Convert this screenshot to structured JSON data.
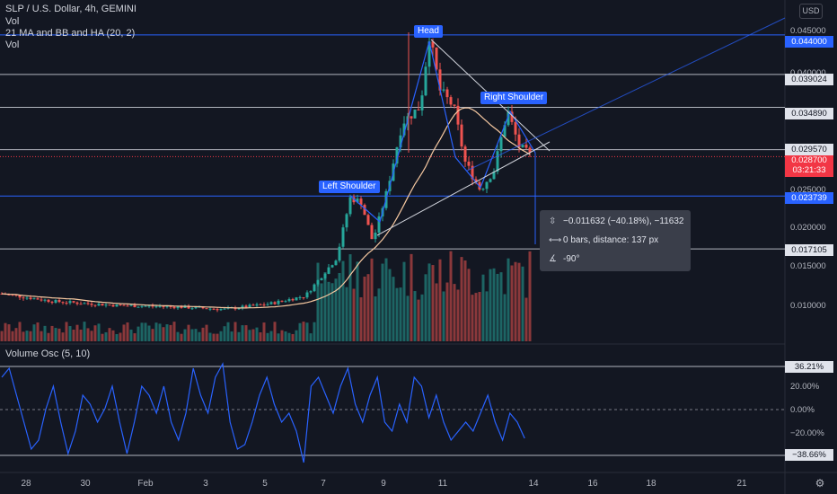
{
  "legend": {
    "symbol": "SLP / U.S. Dollar, 4h, GEMINI",
    "line2": "Vol",
    "line3": "21 MA and BB and HA (20, 2)",
    "line4": "Vol",
    "osc_title": "Volume Osc (5, 10)"
  },
  "currency_button": "USD",
  "price_tags": {
    "tag_044000": "0.044000",
    "tag_039024": "0.039024",
    "tag_034890": "0.034890",
    "tag_029570": "0.029570",
    "tag_current": "0.028700",
    "countdown": "03:21:33",
    "tag_023739": "0.023739",
    "tag_017105": "0.017105"
  },
  "price_axis_labels": [
    "0.045000",
    "0.040000",
    "0.025000",
    "0.020000",
    "0.015000",
    "0.010000"
  ],
  "osc_tags": {
    "top": "36.21%",
    "bottom": "−38.66%"
  },
  "osc_axis_labels": [
    "20.00%",
    "0.00%",
    "−20.00%"
  ],
  "x_axis_labels": [
    "28",
    "30",
    "Feb",
    "3",
    "5",
    "7",
    "9",
    "11",
    "14",
    "16",
    "18",
    "21"
  ],
  "pattern_labels": {
    "head": "Head",
    "left_shoulder": "Left Shoulder",
    "right_shoulder": "Right Shoulder"
  },
  "measure": {
    "row1": "−0.011632 (−40.18%), −11632",
    "row2": "0 bars, distance: 137 px",
    "row3": "-90°"
  },
  "colors": {
    "background": "#131722",
    "bull": "#26a69a",
    "bear": "#ef5350",
    "accent": "#2962ff",
    "ma": "#f7c9a1"
  },
  "chart_data": {
    "type": "candlestick",
    "title": "SLP / U.S. Dollar, 4h, GEMINI",
    "x": [
      "28",
      "30",
      "Feb",
      "3",
      "5",
      "7",
      "9",
      "11",
      "14",
      "16",
      "18",
      "21"
    ],
    "y_axis_labels": [
      "0.045000",
      "0.040000",
      "0.025000",
      "0.020000",
      "0.015000",
      "0.010000"
    ],
    "horizontal_levels": [
      0.044,
      0.039024,
      0.03489,
      0.02957,
      0.023739,
      0.017105
    ],
    "current_price": 0.0287,
    "annotations": [
      "Head",
      "Left Shoulder",
      "Right Shoulder"
    ],
    "oscillator": {
      "name": "Volume Osc (5, 10)",
      "last_high": 36.21,
      "last_low": -38.66,
      "ticks": [
        20,
        0,
        -20
      ]
    }
  }
}
